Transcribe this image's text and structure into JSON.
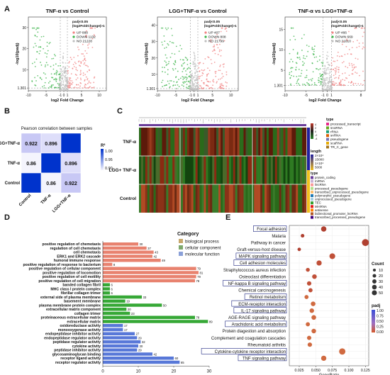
{
  "panels": {
    "A": "A",
    "B": "B",
    "C": "C",
    "D": "D",
    "E": "E"
  },
  "chart_data": [
    {
      "id": "volcano1",
      "type": "scatter",
      "title": "TNF-α vs Control",
      "xlabel": "log2 Fold Change",
      "ylabel": "-log10(padj)",
      "xticks": [
        -10,
        -5,
        -1,
        0,
        1,
        5,
        10
      ],
      "yticks": [
        1.301,
        10,
        20,
        30
      ],
      "xlim": [
        -10,
        12
      ],
      "ylim": [
        0,
        35
      ],
      "legend_title": [
        "padj<0.05",
        "|log2FoldChange|>1"
      ],
      "legend": [
        {
          "label": "UP 888",
          "color": "#f08080"
        },
        {
          "label": "DOWN 1132",
          "color": "#3cb44b"
        },
        {
          "label": "NO 21228",
          "color": "#bfbfbf"
        }
      ]
    },
    {
      "id": "volcano2",
      "type": "scatter",
      "title": "LGG+TNF-α vs Control",
      "xlabel": "log2 Fold Change",
      "ylabel": "-log10(padj)",
      "xticks": [
        -10,
        -5,
        -1,
        0,
        1,
        5,
        10
      ],
      "yticks": [
        1.301,
        10,
        20,
        30,
        40
      ],
      "xlim": [
        -10,
        12
      ],
      "ylim": [
        0,
        45
      ],
      "legend_title": [
        "padj<0.05",
        "|log2FoldChange|>1"
      ],
      "legend": [
        {
          "label": "UP 407",
          "color": "#f08080"
        },
        {
          "label": "DOWN 808",
          "color": "#3cb44b"
        },
        {
          "label": "NO 21799",
          "color": "#bfbfbf"
        }
      ]
    },
    {
      "id": "volcano3",
      "type": "scatter",
      "title": "TNF-α vs LGG+TNF-α",
      "xlabel": "log2 Fold Change",
      "ylabel": "-log10(padj)",
      "xticks": [
        -10,
        -5,
        -1,
        0,
        1,
        8
      ],
      "yticks": [
        1.301,
        5,
        10,
        15
      ],
      "xlim": [
        -10,
        9
      ],
      "ylim": [
        0,
        18
      ],
      "legend_title": [
        "padj<0.05",
        "|log2FoldChange|>1"
      ],
      "legend": [
        {
          "label": "UP 466",
          "color": "#f08080"
        },
        {
          "label": "DOWN 669",
          "color": "#3cb44b"
        },
        {
          "label": "NO 21810",
          "color": "#bfbfbf"
        }
      ]
    },
    {
      "id": "corr",
      "type": "heatmap",
      "title": "Pearson correlation between samples",
      "rows": [
        "LGG+TNF-α",
        "TNF-α",
        "Control"
      ],
      "cols": [
        "Control",
        "TNF-α",
        "LGG+TNF-α"
      ],
      "values": [
        [
          0.922,
          0.896,
          1
        ],
        [
          0.86,
          1,
          0.896
        ],
        [
          1,
          0.86,
          0.922
        ]
      ],
      "legend_title": "R²",
      "legend_ticks": [
        "1.00",
        "0.95",
        "0.90"
      ]
    },
    {
      "id": "expr",
      "type": "heatmap",
      "rows": [
        "TNF-α",
        "LGG+\nTNF-α",
        "Control"
      ],
      "legend": {
        "expression": [
          "4",
          "2",
          "0",
          "-2",
          "-4"
        ],
        "type_title": "type",
        "type_a": [
          {
            "label": "processed_transcript",
            "color": "#e7298a"
          },
          {
            "label": "snoRNA",
            "color": "#66a61e"
          },
          {
            "label": "rRNA",
            "color": "#1b9e77"
          },
          {
            "label": "snRNA",
            "color": "#d95f02"
          },
          {
            "label": "pseudogene",
            "color": "#7570b3"
          },
          {
            "label": "scaRNA",
            "color": "#e6ab02"
          },
          {
            "label": "TR_C_gene",
            "color": "#a6761d"
          }
        ],
        "length_title": "length",
        "length": [
          "2×10⁴",
          "15000",
          "1×10⁴",
          "5000"
        ],
        "type_b_title": "type",
        "type_b": [
          {
            "label": "protein_coding",
            "color": "#6a3d9a"
          },
          {
            "label": "miRNA",
            "color": "#cab2d6"
          },
          {
            "label": "lincRNA",
            "color": "#fb9a99"
          },
          {
            "label": "processed_pseudogene",
            "color": "#b2df8a"
          },
          {
            "label": "transcribed_unprocessed_pseudogene",
            "color": "#fdbf6f"
          },
          {
            "label": "polymorphic_pseudogene",
            "color": "#1f78b4"
          },
          {
            "label": "unprocessed_pseudogene",
            "color": "#a6cee3"
          },
          {
            "label": "TEC",
            "color": "#33a02c"
          },
          {
            "label": "Mt-tRNA",
            "color": "#e31a1c"
          },
          {
            "label": "antisense",
            "color": "#ff7f00"
          },
          {
            "label": "bidirectional_promoter_lncRNA",
            "color": "#b15928"
          },
          {
            "label": "transcribed_processed_pseudogene",
            "color": "#3f007d"
          }
        ]
      }
    },
    {
      "id": "go",
      "type": "bar",
      "legend_title": "Category",
      "categories_legend": [
        {
          "label": "biological process",
          "color": "#c8a86c"
        },
        {
          "label": "cellular component",
          "color": "#7da86c"
        },
        {
          "label": "molecular function",
          "color": "#8aa0d8"
        }
      ],
      "xticks": [
        0,
        10,
        20,
        30
      ],
      "xlim": [
        0,
        30
      ],
      "bars": [
        {
          "label": "positive regulation of chemotaxis",
          "value": 30,
          "group": 0
        },
        {
          "label": "regulation of cell chemotaxis",
          "value": 37,
          "group": 0
        },
        {
          "label": "cell chemotaxis",
          "value": 43,
          "group": 0
        },
        {
          "label": "ERK1 and ERK2 cascade",
          "value": 42,
          "group": 0
        },
        {
          "label": "humoral immune response",
          "value": 49,
          "group": 0
        },
        {
          "label": "positive regulation of response to bacterium",
          "value": 8,
          "group": 0
        },
        {
          "label": "positive regulation of cellular component",
          "value": 79,
          "group": 0
        },
        {
          "label": "positive regulation of locomotion",
          "value": 81,
          "group": 0
        },
        {
          "label": "positive regulation of cell motility",
          "value": 79,
          "group": 0
        },
        {
          "label": "positive regulation of cell migration",
          "value": 78,
          "group": 0
        },
        {
          "label": "banded collagen fibril",
          "value": 6,
          "group": 1
        },
        {
          "label": "MHC class I protein complex",
          "value": 6,
          "group": 1
        },
        {
          "label": "fibrillar collagen trimer",
          "value": 6,
          "group": 1
        },
        {
          "label": "external side of plasma membrane",
          "value": 33,
          "group": 1
        },
        {
          "label": "basement membrane",
          "value": 19,
          "group": 1
        },
        {
          "label": "plasma membrane protein complex",
          "value": 50,
          "group": 1
        },
        {
          "label": "extracellular matrix component",
          "value": 20,
          "group": 1
        },
        {
          "label": "collagen trimer",
          "value": 23,
          "group": 1
        },
        {
          "label": "proteinaceous extracellular matrix",
          "value": 78,
          "group": 1
        },
        {
          "label": "extracellular matrix",
          "value": 89,
          "group": 1
        },
        {
          "label": "oxidoreductase activity",
          "value": 17,
          "group": 2
        },
        {
          "label": "monooxygenase activity",
          "value": 17,
          "group": 2
        },
        {
          "label": "endopeptidase inhibitor activity",
          "value": 27,
          "group": 2
        },
        {
          "label": "endopeptidase regulator activity",
          "value": 29,
          "group": 2
        },
        {
          "label": "peptidase regulator activity",
          "value": 32,
          "group": 2
        },
        {
          "label": "cytokine activity",
          "value": 30,
          "group": 2
        },
        {
          "label": "peptidase inhibitor activity",
          "value": 29,
          "group": 2
        },
        {
          "label": "glycosaminoglycan binding",
          "value": 42,
          "group": 2
        },
        {
          "label": "receptor ligand activity",
          "value": 60,
          "group": 2
        },
        {
          "label": "receptor regulator activity",
          "value": 65,
          "group": 2
        }
      ]
    },
    {
      "id": "kegg",
      "type": "scatter",
      "xlabel": "GeneRatio",
      "xticks": [
        "0.025",
        "0.050",
        "0.075",
        "0.100",
        "0.125"
      ],
      "xlim": [
        0.01,
        0.13
      ],
      "count_title": "Count",
      "count_legend": [
        "10",
        "20",
        "30",
        "40",
        "50"
      ],
      "padj_title": "padj",
      "padj_ticks": [
        "1.00",
        "0.75",
        "0.50",
        "0.25",
        "0.00"
      ],
      "points": [
        {
          "label": "Focal adhesion",
          "x": 0.062,
          "count": 22,
          "boxed": true
        },
        {
          "label": "Malaria",
          "x": 0.03,
          "count": 6,
          "boxed": false
        },
        {
          "label": "Pathway in cancer",
          "x": 0.125,
          "count": 45,
          "boxed": false
        },
        {
          "label": "Graft-versus-host disease",
          "x": 0.025,
          "count": 5,
          "boxed": false
        },
        {
          "label": "MAPK signaling pathway",
          "x": 0.075,
          "count": 27,
          "boxed": true
        },
        {
          "label": "Cell adhesion molecules",
          "x": 0.055,
          "count": 20,
          "boxed": true
        },
        {
          "label": "Straphylococcus aureus infection",
          "x": 0.038,
          "count": 8,
          "boxed": false
        },
        {
          "label": "Osteoclast differentiation",
          "x": 0.048,
          "count": 14,
          "boxed": false
        },
        {
          "label": "NF-kappa B signaling pathway",
          "x": 0.04,
          "count": 12,
          "boxed": true
        },
        {
          "label": "Chemical carcinogenesis",
          "x": 0.042,
          "count": 10,
          "boxed": false
        },
        {
          "label": "Retinol metabolism",
          "x": 0.036,
          "count": 9,
          "boxed": true
        },
        {
          "label": "ECM-receptor interaction",
          "x": 0.046,
          "count": 14,
          "boxed": true
        },
        {
          "label": "IL-17 signaling pathway",
          "x": 0.044,
          "count": 13,
          "boxed": true
        },
        {
          "label": "AGE-RAGE signaling pathway",
          "x": 0.047,
          "count": 15,
          "boxed": false
        },
        {
          "label": "Arachidonic acid metabolism",
          "x": 0.038,
          "count": 10,
          "boxed": true
        },
        {
          "label": "Protein diagestion and absorption",
          "x": 0.047,
          "count": 14,
          "boxed": false
        },
        {
          "label": "Complement and coagulation cascades",
          "x": 0.04,
          "count": 11,
          "boxed": false
        },
        {
          "label": "Rheumatoid arthritis",
          "x": 0.041,
          "count": 12,
          "boxed": false
        },
        {
          "label": "Cytokine-cytokine receptor interaction",
          "x": 0.09,
          "count": 35,
          "boxed": true
        },
        {
          "label": "TNF signaling pathway",
          "x": 0.062,
          "count": 20,
          "boxed": true
        }
      ]
    }
  ]
}
